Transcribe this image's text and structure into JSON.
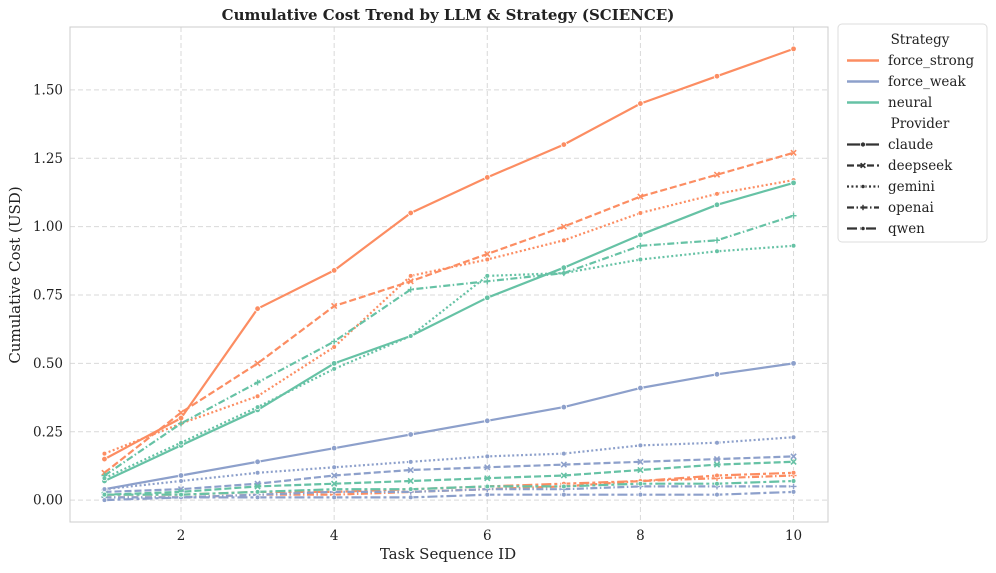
{
  "colors": {
    "force_strong": "#fc8d62",
    "force_weak": "#8da0cb",
    "neural": "#66c2a5"
  },
  "chart_data": {
    "type": "line",
    "title": "Cumulative Cost Trend by LLM & Strategy (SCIENCE)",
    "xlabel": "Task Sequence ID",
    "ylabel": "Cumulative Cost (USD)",
    "xlim": [
      0.55,
      10.45
    ],
    "ylim": [
      -0.08,
      1.73
    ],
    "xticks": [
      2,
      4,
      6,
      8,
      10
    ],
    "yticks": [
      0.0,
      0.25,
      0.5,
      0.75,
      1.0,
      1.25,
      1.5
    ],
    "ytick_labels": [
      "0.00",
      "0.25",
      "0.50",
      "0.75",
      "1.00",
      "1.25",
      "1.50"
    ],
    "grid": true,
    "legend": {
      "placement": "outside-top-right",
      "strategy_title": "Strategy",
      "strategies": [
        "force_strong",
        "force_weak",
        "neural"
      ],
      "provider_title": "Provider",
      "providers": [
        "claude",
        "deepseek",
        "gemini",
        "openai",
        "qwen"
      ]
    },
    "x": [
      1,
      2,
      3,
      4,
      5,
      6,
      7,
      8,
      9,
      10
    ],
    "series": [
      {
        "name": "force_strong / claude",
        "strategy": "force_strong",
        "provider": "claude",
        "values": [
          0.15,
          0.3,
          0.7,
          0.84,
          1.05,
          1.18,
          1.3,
          1.45,
          1.55,
          1.65
        ]
      },
      {
        "name": "force_strong / deepseek",
        "strategy": "force_strong",
        "provider": "deepseek",
        "values": [
          0.1,
          0.32,
          0.5,
          0.71,
          0.8,
          0.9,
          1.0,
          1.11,
          1.19,
          1.27
        ]
      },
      {
        "name": "force_strong / gemini",
        "strategy": "force_strong",
        "provider": "gemini",
        "values": [
          0.17,
          0.28,
          0.38,
          0.56,
          0.82,
          0.88,
          0.95,
          1.05,
          1.12,
          1.17
        ]
      },
      {
        "name": "force_strong / openai",
        "strategy": "force_strong",
        "provider": "openai",
        "values": [
          0.01,
          0.01,
          0.02,
          0.02,
          0.03,
          0.04,
          0.05,
          0.07,
          0.08,
          0.09
        ]
      },
      {
        "name": "force_strong / qwen",
        "strategy": "force_strong",
        "provider": "qwen",
        "values": [
          0.02,
          0.02,
          0.03,
          0.03,
          0.04,
          0.05,
          0.06,
          0.07,
          0.09,
          0.1
        ]
      },
      {
        "name": "force_weak / claude",
        "strategy": "force_weak",
        "provider": "claude",
        "values": [
          0.04,
          0.09,
          0.14,
          0.19,
          0.24,
          0.29,
          0.34,
          0.41,
          0.46,
          0.5
        ]
      },
      {
        "name": "force_weak / deepseek",
        "strategy": "force_weak",
        "provider": "deepseek",
        "values": [
          0.03,
          0.04,
          0.06,
          0.09,
          0.11,
          0.12,
          0.13,
          0.14,
          0.15,
          0.16
        ]
      },
      {
        "name": "force_weak / gemini",
        "strategy": "force_weak",
        "provider": "gemini",
        "values": [
          0.04,
          0.07,
          0.1,
          0.12,
          0.14,
          0.16,
          0.17,
          0.2,
          0.21,
          0.23
        ]
      },
      {
        "name": "force_weak / openai",
        "strategy": "force_weak",
        "provider": "openai",
        "values": [
          0.01,
          0.01,
          0.02,
          0.03,
          0.03,
          0.04,
          0.04,
          0.05,
          0.05,
          0.05
        ]
      },
      {
        "name": "force_weak / qwen",
        "strategy": "force_weak",
        "provider": "qwen",
        "values": [
          0.0,
          0.01,
          0.01,
          0.01,
          0.01,
          0.02,
          0.02,
          0.02,
          0.02,
          0.03
        ]
      },
      {
        "name": "neural / claude",
        "strategy": "neural",
        "provider": "claude",
        "values": [
          0.07,
          0.2,
          0.33,
          0.5,
          0.6,
          0.74,
          0.85,
          0.97,
          1.08,
          1.16
        ]
      },
      {
        "name": "neural / deepseek",
        "strategy": "neural",
        "provider": "deepseek",
        "values": [
          0.02,
          0.03,
          0.05,
          0.06,
          0.07,
          0.08,
          0.09,
          0.11,
          0.13,
          0.14
        ]
      },
      {
        "name": "neural / gemini",
        "strategy": "neural",
        "provider": "gemini",
        "values": [
          0.08,
          0.21,
          0.34,
          0.48,
          0.6,
          0.82,
          0.83,
          0.88,
          0.91,
          0.93
        ]
      },
      {
        "name": "neural / openai",
        "strategy": "neural",
        "provider": "openai",
        "values": [
          0.09,
          0.28,
          0.43,
          0.58,
          0.77,
          0.8,
          0.83,
          0.93,
          0.95,
          1.04
        ]
      },
      {
        "name": "neural / qwen",
        "strategy": "neural",
        "provider": "qwen",
        "values": [
          0.02,
          0.02,
          0.03,
          0.04,
          0.04,
          0.05,
          0.05,
          0.06,
          0.06,
          0.07
        ]
      }
    ]
  }
}
